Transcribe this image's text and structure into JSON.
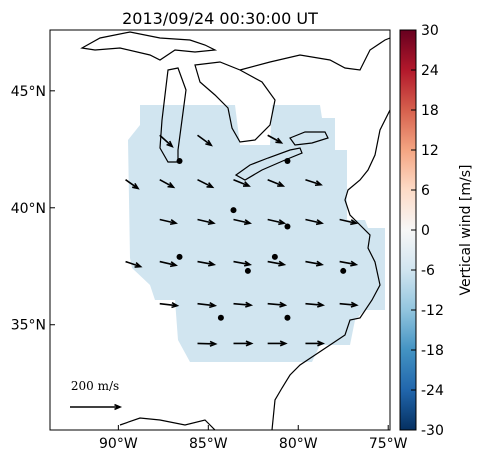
{
  "chart_data": {
    "type": "quiver",
    "title": "2013/09/24 00:30:00 UT",
    "xlim": [
      -93.8,
      -74.9
    ],
    "ylim": [
      30.5,
      47.6
    ],
    "xticks": [
      {
        "value": -90,
        "label": "90°W"
      },
      {
        "value": -85,
        "label": "85°W"
      },
      {
        "value": -80,
        "label": "80°W"
      },
      {
        "value": -75,
        "label": "75°W"
      }
    ],
    "yticks": [
      {
        "value": 35,
        "label": "35°N"
      },
      {
        "value": 40,
        "label": "40°N"
      },
      {
        "value": 45,
        "label": "45°N"
      }
    ],
    "colorbar": {
      "label": "Vertical wind [m/s]",
      "lim": [
        -30,
        30
      ],
      "ticks": [
        -30,
        -24,
        -18,
        -12,
        -6,
        0,
        6,
        12,
        18,
        24,
        30
      ]
    },
    "scale_value": 200,
    "scale_label": "200 m/s",
    "vectors": {
      "lon": [
        -87.7,
        -85.6,
        -81.7,
        -89.6,
        -87.7,
        -85.6,
        -83.6,
        -81.7,
        -79.6,
        -87.7,
        -85.6,
        -83.6,
        -81.7,
        -79.6,
        -77.7,
        -89.6,
        -87.7,
        -85.6,
        -83.6,
        -81.7,
        -79.6,
        -77.7,
        -87.7,
        -85.6,
        -83.6,
        -81.7,
        -79.6,
        -77.7,
        -85.6,
        -83.6,
        -81.7,
        -79.6
      ],
      "lat": [
        43.1,
        43.1,
        43.1,
        41.2,
        41.2,
        41.2,
        41.2,
        41.2,
        41.2,
        39.5,
        39.5,
        39.5,
        39.5,
        39.5,
        39.5,
        37.7,
        37.7,
        37.7,
        37.7,
        37.7,
        37.7,
        37.7,
        35.9,
        35.9,
        35.9,
        35.9,
        35.9,
        35.9,
        34.2,
        34.2,
        34.2,
        34.2
      ],
      "u": [
        50,
        55,
        55,
        50,
        55,
        60,
        62,
        62,
        62,
        65,
        65,
        66,
        66,
        66,
        66,
        60,
        65,
        66,
        66,
        66,
        66,
        66,
        70,
        70,
        70,
        70,
        70,
        68,
        72,
        72,
        72,
        70
      ],
      "v": [
        -45,
        -40,
        -30,
        -35,
        -30,
        -30,
        -25,
        -25,
        -20,
        -15,
        -15,
        -15,
        -15,
        -15,
        -15,
        -20,
        -15,
        -12,
        -12,
        -12,
        -12,
        -12,
        -8,
        -8,
        -6,
        -6,
        -6,
        -6,
        -2,
        0,
        0,
        0
      ]
    },
    "stations": {
      "lon": [
        -86.6,
        -80.6,
        -83.6,
        -80.6,
        -86.6,
        -81.3,
        -82.8,
        -77.5,
        -84.3,
        -80.6
      ],
      "lat": [
        42.0,
        42.0,
        39.9,
        39.2,
        37.9,
        37.9,
        37.3,
        37.3,
        35.3,
        35.3
      ]
    }
  }
}
